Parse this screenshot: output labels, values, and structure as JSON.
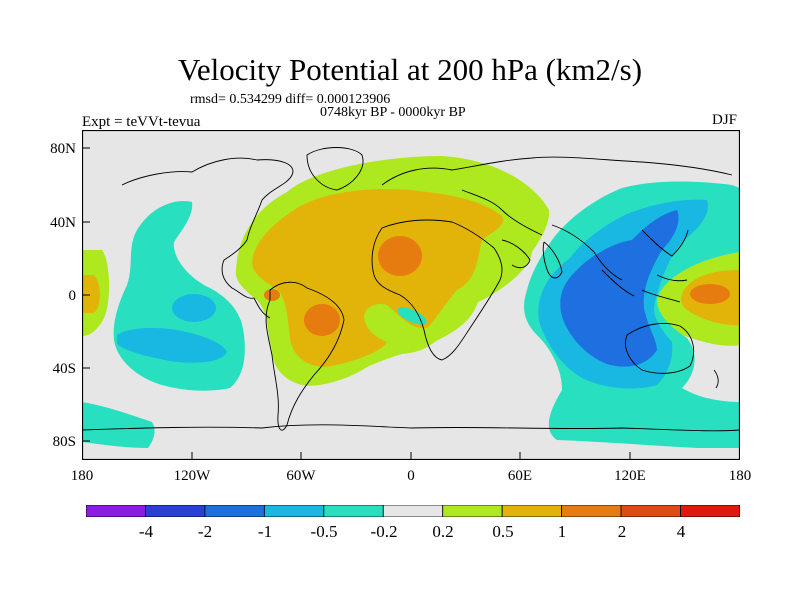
{
  "map": {
    "title": "Velocity Potential at 200 hPa (km2/s)",
    "stats": "rmsd= 0.534299  diff= 0.000123906",
    "period": "0748kyr BP - 0000kyr BP",
    "experiment": "Expt = teVVt-tevua",
    "season": "DJF",
    "lat_labels": [
      "80N",
      "40N",
      "0",
      "40S",
      "80S"
    ],
    "lon_labels": [
      "180",
      "120W",
      "60W",
      "0",
      "60E",
      "120E",
      "180"
    ]
  },
  "colorbar": {
    "colors": [
      "#8a1ce6",
      "#2a3fd6",
      "#1e6fdf",
      "#18b8e2",
      "#28e0c0",
      "#e6e6e6",
      "#aee81e",
      "#e2b40a",
      "#e67c10",
      "#e04a14",
      "#e0190e"
    ],
    "labels": [
      "-4",
      "-2",
      "-1",
      "-0.5",
      "-0.2",
      "0.2",
      "0.5",
      "1",
      "2",
      "4"
    ]
  }
}
